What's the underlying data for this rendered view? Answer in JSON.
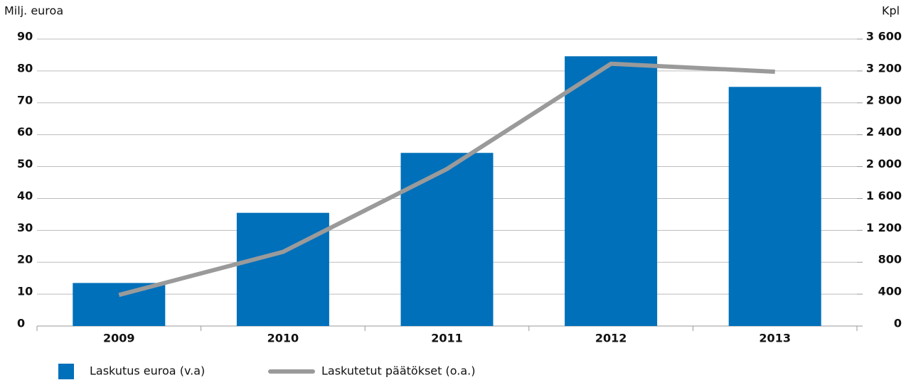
{
  "chart_data": {
    "type": "bar",
    "y_label": "Milj. euroa",
    "y2_label": "Kpl",
    "categories": [
      "2009",
      "2010",
      "2011",
      "2012",
      "2013"
    ],
    "series": [
      {
        "name": "Laskutus euroa (v.a)",
        "type": "bar",
        "color": "#0070ba",
        "values": [
          13.5,
          35.5,
          54.3,
          84.6,
          75
        ]
      },
      {
        "name": "Laskutetut päätökset (o.a.)",
        "type": "line",
        "axis": "y2",
        "color": "#9a9a9a",
        "values": [
          390,
          930,
          1970,
          3290,
          3190
        ]
      }
    ],
    "ylim": [
      0,
      90
    ],
    "yticks": [
      0,
      10,
      20,
      30,
      40,
      50,
      60,
      70,
      80,
      90
    ],
    "y2lim": [
      0,
      3600
    ],
    "y2ticks": [
      0,
      400,
      800,
      {
        "value": 1200,
        "label": "1 200"
      },
      {
        "value": 1600,
        "label": "1 600"
      },
      {
        "value": 2000,
        "label": "2 000"
      },
      {
        "value": 2400,
        "label": "2 400"
      },
      {
        "value": 2800,
        "label": "2 800"
      },
      {
        "value": 3200,
        "label": "3 200"
      },
      {
        "value": 3600,
        "label": "3 600"
      }
    ],
    "grid": true
  }
}
